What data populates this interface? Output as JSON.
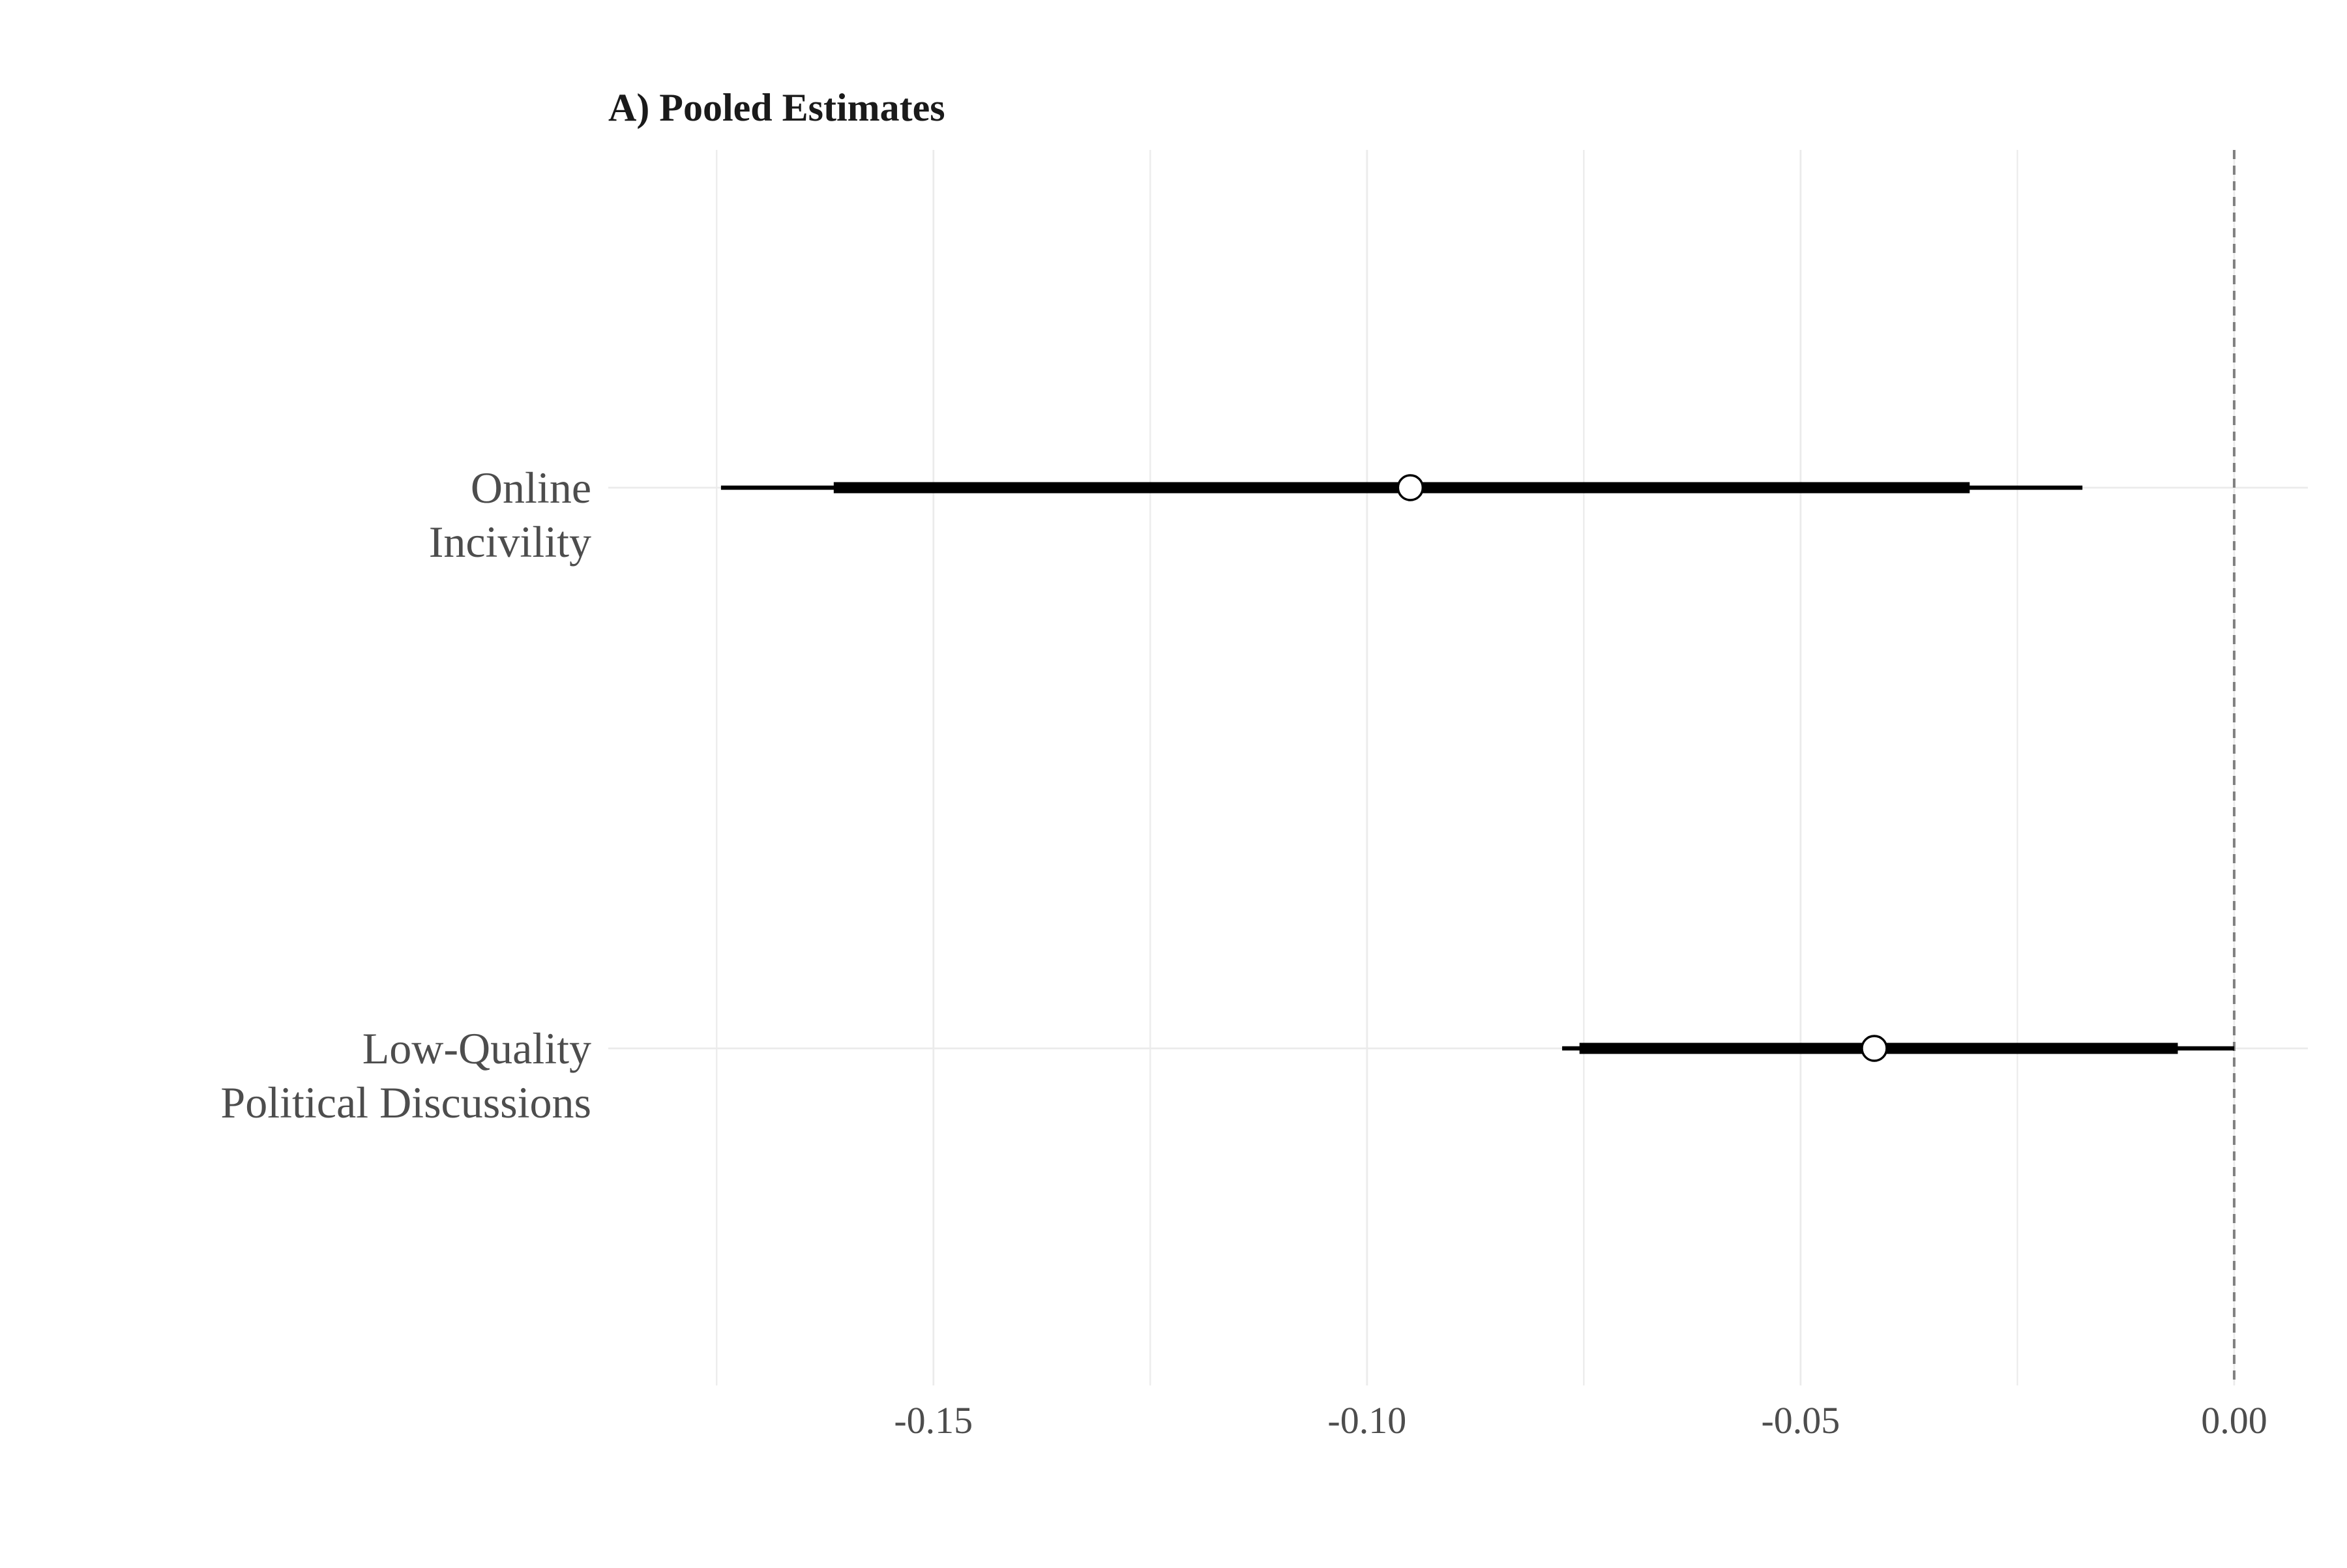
{
  "chart_data": {
    "type": "forest",
    "title": "A) Pooled Estimates",
    "xlabel": "",
    "ylabel": "",
    "xlim": [
      -0.1875,
      0.0085
    ],
    "x_ticks": [
      -0.15,
      -0.1,
      -0.05,
      0.0
    ],
    "x_tick_labels": [
      "-0.15",
      "-0.10",
      "-0.05",
      "0.00"
    ],
    "x_minor_ticks": [
      -0.175,
      -0.125,
      -0.075,
      -0.025
    ],
    "reference_line": {
      "x": 0,
      "style": "dashed",
      "color": "#808080"
    },
    "grid": true,
    "legend": "none",
    "series": [
      {
        "label_lines": [
          "Online",
          "Incivility"
        ],
        "estimate": -0.095,
        "ci_inner": [
          -0.1615,
          -0.0305
        ],
        "ci_outer": [
          -0.1745,
          -0.0175
        ]
      },
      {
        "label_lines": [
          "Low-Quality",
          "Political Discussions"
        ],
        "estimate": -0.0415,
        "ci_inner": [
          -0.0755,
          -0.0065
        ],
        "ci_outer": [
          -0.0775,
          0.0
        ]
      }
    ],
    "colors": {
      "interval": "#000000",
      "point_fill": "#ffffff",
      "point_stroke": "#000000",
      "grid": "#ebebeb",
      "text": "#4d4d4d",
      "title": "#1a1a1a"
    }
  }
}
